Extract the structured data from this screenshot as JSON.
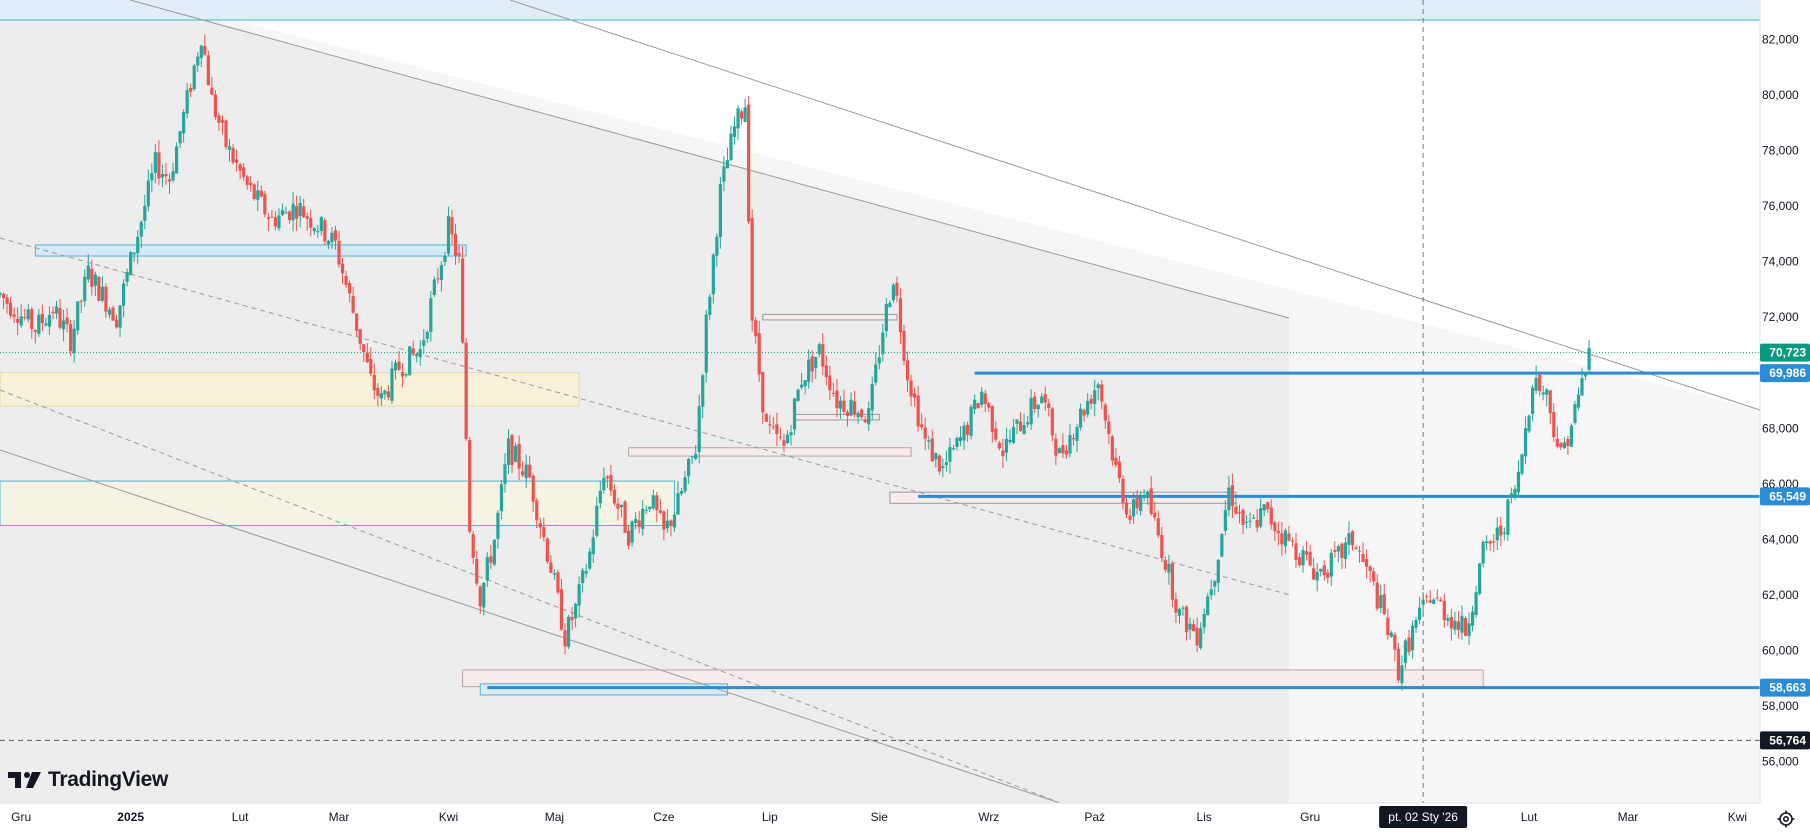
{
  "brand": {
    "name": "TradingView",
    "icon": "tradingview-logo-icon"
  },
  "crosshair": {
    "date_label": "pt. 02 Sty '26"
  },
  "settings": {
    "icon": "gear-icon"
  },
  "colors": {
    "up": "#26a69a",
    "down": "#ef5350",
    "level": "#2a8bd6",
    "last": "#089981",
    "crossLabel": "#131722",
    "dashLevel": "#555555"
  },
  "chart_data": {
    "type": "candlestick",
    "timeframe": "daily",
    "ylim": [
      54800,
      83200
    ],
    "y_ticks": [
      "56,000",
      "58,000",
      "60,000",
      "62,000",
      "64,000",
      "66,000",
      "68,000",
      "70,000",
      "72,000",
      "74,000",
      "76,000",
      "78,000",
      "80,000",
      "82,000"
    ],
    "x_ticks": [
      "Gru",
      "2025",
      "Lut",
      "Mar",
      "Kwi",
      "Maj",
      "Cze",
      "Lip",
      "Sie",
      "Wrz",
      "Paź",
      "Lis",
      "Gru",
      "Lut",
      "Mar",
      "Kwi"
    ],
    "x_tick_dates": [
      "2024-12-01",
      "2025-01-01",
      "2025-02-01",
      "2025-03-01",
      "2025-04-01",
      "2025-05-01",
      "2025-06-01",
      "2025-07-01",
      "2025-08-01",
      "2025-09-01",
      "2025-10-01",
      "2025-11-01",
      "2025-12-01",
      "2026-02-01",
      "2026-03-01",
      "2026-04-01"
    ],
    "x_range": [
      "2024-11-25",
      "2026-04-04"
    ],
    "crosshair_date": "2026-01-02",
    "price_labels": [
      {
        "value": 70723,
        "label": "70,723",
        "style": "last"
      },
      {
        "value": 69986,
        "label": "69,986",
        "style": "level"
      },
      {
        "value": 65549,
        "label": "65,549",
        "style": "level"
      },
      {
        "value": 58663,
        "label": "58,663",
        "style": "level"
      },
      {
        "value": 56764,
        "label": "56,764",
        "style": "dark"
      }
    ],
    "horizontal_levels": [
      {
        "value": 69986,
        "from": "2025-08-28",
        "to": "2026-04-04"
      },
      {
        "value": 65549,
        "from": "2025-08-12",
        "to": "2026-04-04"
      },
      {
        "value": 58663,
        "from": "2025-04-12",
        "to": "2026-04-04"
      }
    ],
    "dashed_level": 56764,
    "last_price_line": 70723,
    "candle_path": [
      [
        "2024-11-25",
        72800
      ],
      [
        "2024-12-05",
        71600
      ],
      [
        "2024-12-10",
        72300
      ],
      [
        "2024-12-15",
        71200
      ],
      [
        "2024-12-20",
        73600
      ],
      [
        "2024-12-28",
        72000
      ],
      [
        "2025-01-02",
        74500
      ],
      [
        "2025-01-08",
        77500
      ],
      [
        "2025-01-12",
        77000
      ],
      [
        "2025-01-17",
        79800
      ],
      [
        "2025-01-21",
        82200
      ],
      [
        "2025-01-24",
        79800
      ],
      [
        "2025-01-28",
        78200
      ],
      [
        "2025-02-03",
        76700
      ],
      [
        "2025-02-10",
        75500
      ],
      [
        "2025-02-17",
        76000
      ],
      [
        "2025-02-24",
        75200
      ],
      [
        "2025-02-28",
        74600
      ],
      [
        "2025-03-05",
        72200
      ],
      [
        "2025-03-10",
        69700
      ],
      [
        "2025-03-13",
        69000
      ],
      [
        "2025-03-18",
        70200
      ],
      [
        "2025-03-24",
        70800
      ],
      [
        "2025-03-28",
        73000
      ],
      [
        "2025-04-01",
        75200
      ],
      [
        "2025-04-04",
        74000
      ],
      [
        "2025-04-07",
        64500
      ],
      [
        "2025-04-10",
        61900
      ],
      [
        "2025-04-14",
        64000
      ],
      [
        "2025-04-18",
        67300
      ],
      [
        "2025-04-24",
        66200
      ],
      [
        "2025-04-30",
        63000
      ],
      [
        "2025-05-04",
        60500
      ],
      [
        "2025-05-07",
        61500
      ],
      [
        "2025-05-11",
        63500
      ],
      [
        "2025-05-15",
        66500
      ],
      [
        "2025-05-22",
        64200
      ],
      [
        "2025-05-28",
        65500
      ],
      [
        "2025-06-01",
        64200
      ],
      [
        "2025-06-05",
        65300
      ],
      [
        "2025-06-10",
        67300
      ],
      [
        "2025-06-13",
        71800
      ],
      [
        "2025-06-17",
        76500
      ],
      [
        "2025-06-21",
        78800
      ],
      [
        "2025-06-24",
        79700
      ],
      [
        "2025-06-26",
        72000
      ],
      [
        "2025-06-30",
        68000
      ],
      [
        "2025-07-05",
        67300
      ],
      [
        "2025-07-10",
        69800
      ],
      [
        "2025-07-15",
        70800
      ],
      [
        "2025-07-20",
        69000
      ],
      [
        "2025-07-25",
        68800
      ],
      [
        "2025-07-29",
        68400
      ],
      [
        "2025-08-02",
        71600
      ],
      [
        "2025-08-05",
        73500
      ],
      [
        "2025-08-09",
        70000
      ],
      [
        "2025-08-14",
        67500
      ],
      [
        "2025-08-19",
        66500
      ],
      [
        "2025-08-25",
        67800
      ],
      [
        "2025-08-30",
        69300
      ],
      [
        "2025-09-05",
        67200
      ],
      [
        "2025-09-10",
        68200
      ],
      [
        "2025-09-16",
        69200
      ],
      [
        "2025-09-21",
        67000
      ],
      [
        "2025-09-27",
        68500
      ],
      [
        "2025-10-02",
        69700
      ],
      [
        "2025-10-07",
        66500
      ],
      [
        "2025-10-11",
        64800
      ],
      [
        "2025-10-15",
        65800
      ],
      [
        "2025-10-20",
        63700
      ],
      [
        "2025-10-25",
        61300
      ],
      [
        "2025-10-30",
        60600
      ],
      [
        "2025-11-04",
        62900
      ],
      [
        "2025-11-08",
        65800
      ],
      [
        "2025-11-13",
        64300
      ],
      [
        "2025-11-18",
        65000
      ],
      [
        "2025-11-23",
        64200
      ],
      [
        "2025-11-28",
        63500
      ],
      [
        "2025-12-03",
        62800
      ],
      [
        "2025-12-08",
        63200
      ],
      [
        "2025-12-13",
        64000
      ],
      [
        "2025-12-18",
        62600
      ],
      [
        "2025-12-22",
        61200
      ],
      [
        "2025-12-26",
        59300
      ],
      [
        "2025-12-30",
        60700
      ],
      [
        "2026-01-04",
        62000
      ],
      [
        "2026-01-09",
        61300
      ],
      [
        "2026-01-14",
        60700
      ],
      [
        "2026-01-19",
        63500
      ],
      [
        "2026-01-24",
        64300
      ],
      [
        "2026-01-29",
        66200
      ],
      [
        "2026-02-02",
        69800
      ],
      [
        "2026-02-06",
        69200
      ],
      [
        "2026-02-10",
        67000
      ],
      [
        "2026-02-14",
        68600
      ],
      [
        "2026-02-18",
        70700
      ]
    ]
  }
}
